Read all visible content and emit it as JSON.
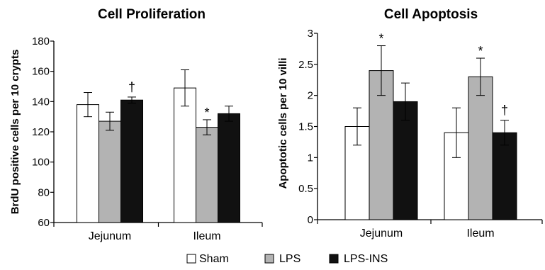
{
  "legend": {
    "items": [
      {
        "label": "Sham",
        "color": "#ffffff"
      },
      {
        "label": "LPS",
        "color": "#b3b3b3"
      },
      {
        "label": "LPS-INS",
        "color": "#111111"
      }
    ]
  },
  "chart_data": [
    {
      "type": "bar",
      "title": "Cell Proliferation",
      "xlabel": "",
      "ylabel": "BrdU positive cells per 10 crypts",
      "ylim": [
        60,
        180
      ],
      "yticks": [
        "60",
        "80",
        "100",
        "120",
        "140",
        "160",
        "180"
      ],
      "yticks_values": [
        60,
        80,
        100,
        120,
        140,
        160,
        180
      ],
      "grid": false,
      "categories": [
        "Jejunum",
        "Ileum"
      ],
      "series": [
        {
          "name": "Sham",
          "values": [
            138,
            149
          ],
          "errors": [
            8,
            12
          ]
        },
        {
          "name": "LPS",
          "values": [
            127,
            123
          ],
          "errors": [
            6,
            5
          ]
        },
        {
          "name": "LPS-INS",
          "values": [
            141,
            132
          ],
          "errors": [
            2,
            5
          ]
        }
      ],
      "annotations": [
        {
          "category": 0,
          "series": 2,
          "text": "†"
        },
        {
          "category": 1,
          "series": 1,
          "text": "*"
        }
      ]
    },
    {
      "type": "bar",
      "title": "Cell Apoptosis",
      "xlabel": "",
      "ylabel": "Apoptotic cells per 10 villi",
      "ylim": [
        0,
        3
      ],
      "yticks": [
        "0",
        "0.5",
        "1",
        "1.5",
        "2",
        "2.5",
        "3"
      ],
      "yticks_values": [
        0,
        0.5,
        1,
        1.5,
        2,
        2.5,
        3
      ],
      "grid": false,
      "categories": [
        "Jejunum",
        "Ileum"
      ],
      "series": [
        {
          "name": "Sham",
          "values": [
            1.5,
            1.4
          ],
          "errors": [
            0.3,
            0.4
          ]
        },
        {
          "name": "LPS",
          "values": [
            2.4,
            2.3
          ],
          "errors": [
            0.4,
            0.3
          ]
        },
        {
          "name": "LPS-INS",
          "values": [
            1.9,
            1.4
          ],
          "errors": [
            0.3,
            0.2
          ]
        }
      ],
      "annotations": [
        {
          "category": 0,
          "series": 1,
          "text": "*"
        },
        {
          "category": 1,
          "series": 1,
          "text": "*"
        },
        {
          "category": 1,
          "series": 2,
          "text": "†"
        }
      ]
    }
  ]
}
